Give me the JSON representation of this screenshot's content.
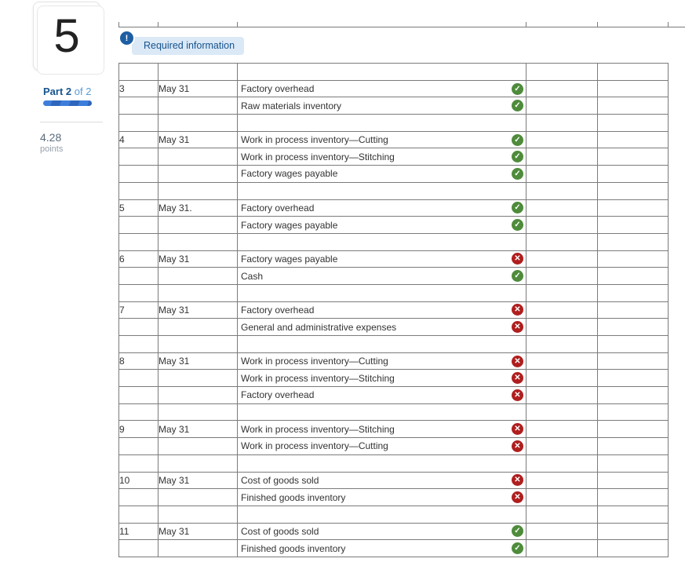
{
  "colors": {
    "accent_blue": "#1d5ea3",
    "badge_bg": "#dbe8f6",
    "badge_text": "#17548f",
    "part_text": "#17548f",
    "part_muted_text": "#5b9bd5",
    "progress_bar": "#3d7edb",
    "progress_stripe": "#2e66bd",
    "points_value_text": "#5a6b7b",
    "points_label_text": "#97a1ab",
    "table_border": "#7b7b7b",
    "body_text": "#333333",
    "correct_icon": "#4e8b3b",
    "incorrect_icon": "#b01e1e",
    "correct_row_bg": "#f3f7f0",
    "incorrect_row_bg": "#fdf3f3"
  },
  "sidebar": {
    "question_number": "5",
    "part_bold": "Part 2",
    "part_rest": " of 2",
    "points_value": "4.28",
    "points_label": "points"
  },
  "header": {
    "exclamation": "!",
    "required_info": "Required information"
  },
  "icons": {
    "correct_glyph": "✓",
    "incorrect_glyph": "✕"
  },
  "table": {
    "entries": [
      {
        "no": "3",
        "date": "May 31",
        "lines": [
          {
            "account": "Factory overhead",
            "status": "correct"
          },
          {
            "account": "Raw materials inventory",
            "status": "correct"
          }
        ]
      },
      {
        "no": "4",
        "date": "May 31",
        "lines": [
          {
            "account": "Work in process inventory—Cutting",
            "status": "correct"
          },
          {
            "account": "Work in process inventory—Stitching",
            "status": "correct"
          },
          {
            "account": "Factory wages payable",
            "status": "correct"
          }
        ]
      },
      {
        "no": "5",
        "date": "May 31.",
        "lines": [
          {
            "account": "Factory overhead",
            "status": "correct"
          },
          {
            "account": "Factory wages payable",
            "status": "correct"
          }
        ]
      },
      {
        "no": "6",
        "date": "May 31",
        "lines": [
          {
            "account": "Factory wages payable",
            "status": "incorrect"
          },
          {
            "account": "Cash",
            "status": "correct"
          }
        ]
      },
      {
        "no": "7",
        "date": "May 31",
        "lines": [
          {
            "account": "Factory overhead",
            "status": "incorrect"
          },
          {
            "account": "General and administrative expenses",
            "status": "incorrect"
          }
        ]
      },
      {
        "no": "8",
        "date": "May 31",
        "lines": [
          {
            "account": "Work in process inventory—Cutting",
            "status": "incorrect"
          },
          {
            "account": "Work in process inventory—Stitching",
            "status": "incorrect"
          },
          {
            "account": "Factory overhead",
            "status": "incorrect"
          }
        ]
      },
      {
        "no": "9",
        "date": "May 31",
        "lines": [
          {
            "account": "Work in process inventory—Stitching",
            "status": "incorrect"
          },
          {
            "account": "Work in process inventory—Cutting",
            "status": "incorrect"
          }
        ]
      },
      {
        "no": "10",
        "date": "May 31",
        "lines": [
          {
            "account": "Cost of goods sold",
            "status": "incorrect"
          },
          {
            "account": "Finished goods inventory",
            "status": "incorrect"
          }
        ]
      },
      {
        "no": "11",
        "date": "May 31",
        "lines": [
          {
            "account": "Cost of goods sold",
            "status": "correct"
          },
          {
            "account": "Finished goods inventory",
            "status": "correct"
          }
        ]
      }
    ]
  }
}
